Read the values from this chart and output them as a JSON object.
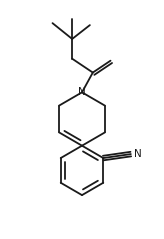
{
  "background_color": "#ffffff",
  "line_color": "#1a1a1a",
  "line_width": 1.3,
  "figsize": [
    1.64,
    2.39
  ],
  "dpi": 100
}
